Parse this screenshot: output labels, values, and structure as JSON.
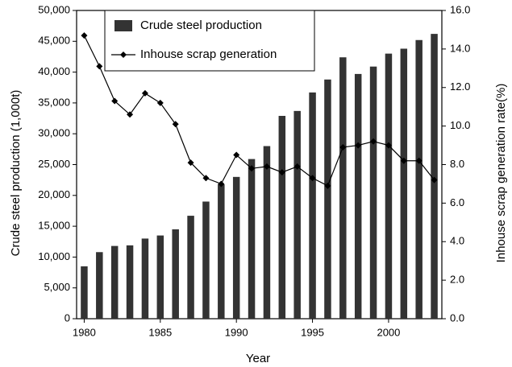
{
  "chart_data": {
    "type": "bar-line",
    "xlabel": "Year",
    "ylabel": "Crude steel production (1,000t)",
    "y2label": "Inhouse scrap generation rate(%)",
    "x": [
      1980,
      1981,
      1982,
      1983,
      1984,
      1985,
      1986,
      1987,
      1988,
      1989,
      1990,
      1991,
      1992,
      1993,
      1994,
      1995,
      1996,
      1997,
      1998,
      1999,
      2000,
      2001,
      2002,
      2003
    ],
    "series": [
      {
        "name": "Crude steel production",
        "type": "bar",
        "color": "#333333",
        "values": [
          8500,
          10800,
          11800,
          11900,
          13000,
          13500,
          14500,
          16700,
          19000,
          21800,
          23000,
          25900,
          28000,
          32900,
          33700,
          36700,
          38800,
          42400,
          39700,
          40900,
          43000,
          43800,
          45200,
          46200
        ]
      },
      {
        "name": "Inhouse scrap generation",
        "type": "line",
        "axis": "y2",
        "color": "#000000",
        "values": [
          14.7,
          13.1,
          11.3,
          10.6,
          11.7,
          11.2,
          10.1,
          8.1,
          7.3,
          7.0,
          8.5,
          7.8,
          7.9,
          7.6,
          7.9,
          7.3,
          6.9,
          8.9,
          9.0,
          9.2,
          9.0,
          8.2,
          8.2,
          7.2
        ]
      }
    ],
    "xlim": [
      1979.5,
      2003.5
    ],
    "xticks": [
      1980,
      1985,
      1990,
      1995,
      2000
    ],
    "ylim": [
      0,
      50000
    ],
    "yticks": [
      0,
      {
        "value": 5000,
        "label": "5,000"
      },
      {
        "value": 10000,
        "label": "10,000"
      },
      {
        "value": 15000,
        "label": "15,000"
      },
      {
        "value": 20000,
        "label": "20,000"
      },
      {
        "value": 25000,
        "label": "25,000"
      },
      {
        "value": 30000,
        "label": "30,000"
      },
      {
        "value": 35000,
        "label": "35,000"
      },
      {
        "value": 40000,
        "label": "40,000"
      },
      {
        "value": 45000,
        "label": "45,000"
      },
      {
        "value": 50000,
        "label": "50,000"
      }
    ],
    "y2lim": [
      0,
      16
    ],
    "y2ticks": [
      {
        "value": 0,
        "label": "0.0"
      },
      {
        "value": 2,
        "label": "2.0"
      },
      {
        "value": 4,
        "label": "4.0"
      },
      {
        "value": 6,
        "label": "6.0"
      },
      {
        "value": 8,
        "label": "8.0"
      },
      {
        "value": 10,
        "label": "10.0"
      },
      {
        "value": 12,
        "label": "12.0"
      },
      {
        "value": 14,
        "label": "14.0"
      },
      {
        "value": 16,
        "label": "16.0"
      }
    ],
    "grid": false,
    "legend": "upper left"
  }
}
